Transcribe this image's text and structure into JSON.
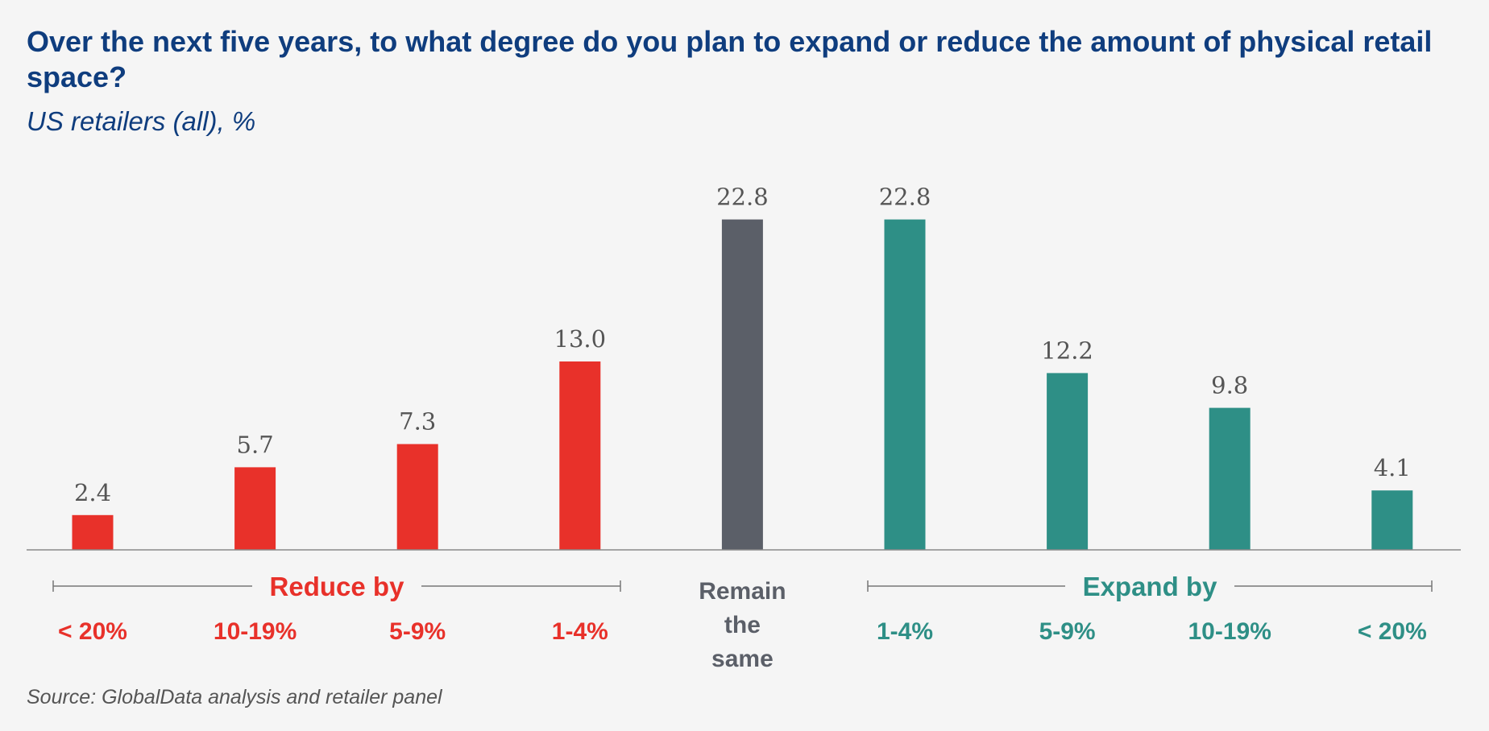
{
  "title": "Over the next five years, to what degree do you plan to expand or reduce the amount of physical retail space?",
  "subtitle": "US retailers (all), %",
  "source": "Source: GlobalData analysis and retailer panel",
  "chart_data": {
    "type": "bar",
    "categories": [
      "< 20%",
      "10-19%",
      "5-9%",
      "1-4%",
      "Remain the same",
      "1-4%",
      "5-9%",
      "10-19%",
      "< 20%"
    ],
    "values": [
      2.4,
      5.7,
      7.3,
      13.0,
      22.8,
      22.8,
      12.2,
      9.8,
      4.1
    ],
    "value_labels": [
      "2.4",
      "5.7",
      "7.3",
      "13.0",
      "22.8",
      "22.8",
      "12.2",
      "9.8",
      "4.1"
    ],
    "groups": [
      "reduce",
      "reduce",
      "reduce",
      "reduce",
      "same",
      "expand",
      "expand",
      "expand",
      "expand"
    ],
    "group_labels": {
      "reduce": "Reduce by",
      "expand": "Expand by"
    },
    "same_label_lines": [
      "Remain",
      "the",
      "same"
    ],
    "colors": {
      "reduce": "#e8312a",
      "same": "#5b5f68",
      "expand": "#2e8f86",
      "value": "#555555",
      "axis": "#8a8a8a"
    },
    "ylim": [
      0,
      25
    ],
    "xlabel": "",
    "ylabel": "",
    "grid": false,
    "legend": "none"
  }
}
